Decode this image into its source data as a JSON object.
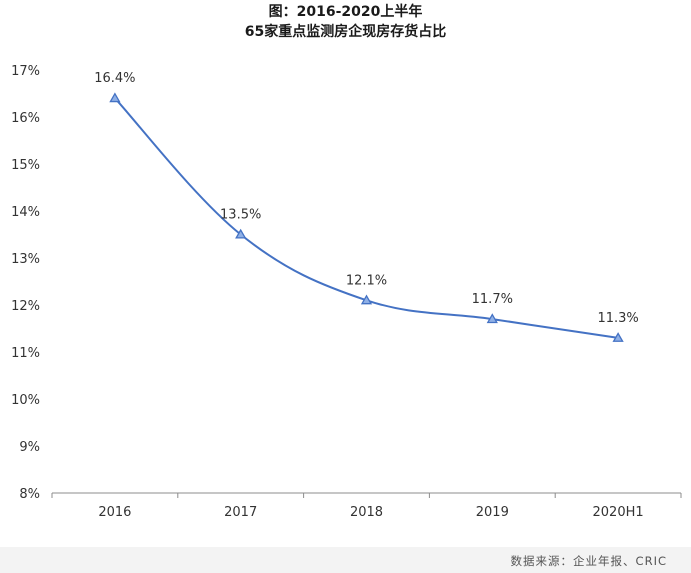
{
  "chart_data": {
    "type": "line",
    "title": "图：2016-2020上半年",
    "subtitle": "65家重点监测房企现房存货占比",
    "categories": [
      "2016",
      "2017",
      "2018",
      "2019",
      "2020H1"
    ],
    "series": [
      {
        "values": [
          16.4,
          13.5,
          12.1,
          11.7,
          11.3
        ],
        "labels": [
          "16.4%",
          "13.5%",
          "12.1%",
          "11.7%",
          "11.3%"
        ],
        "color": "#4472c4",
        "marker": "triangle"
      }
    ],
    "ylim": [
      8,
      17
    ],
    "yticks": [
      8,
      9,
      10,
      11,
      12,
      13,
      14,
      15,
      16,
      17
    ],
    "ytick_labels": [
      "8%",
      "9%",
      "10%",
      "11%",
      "12%",
      "13%",
      "14%",
      "15%",
      "16%",
      "17%"
    ],
    "grid": false,
    "xlabel": "",
    "ylabel": ""
  },
  "source": "数据来源：企业年报、CRIC"
}
